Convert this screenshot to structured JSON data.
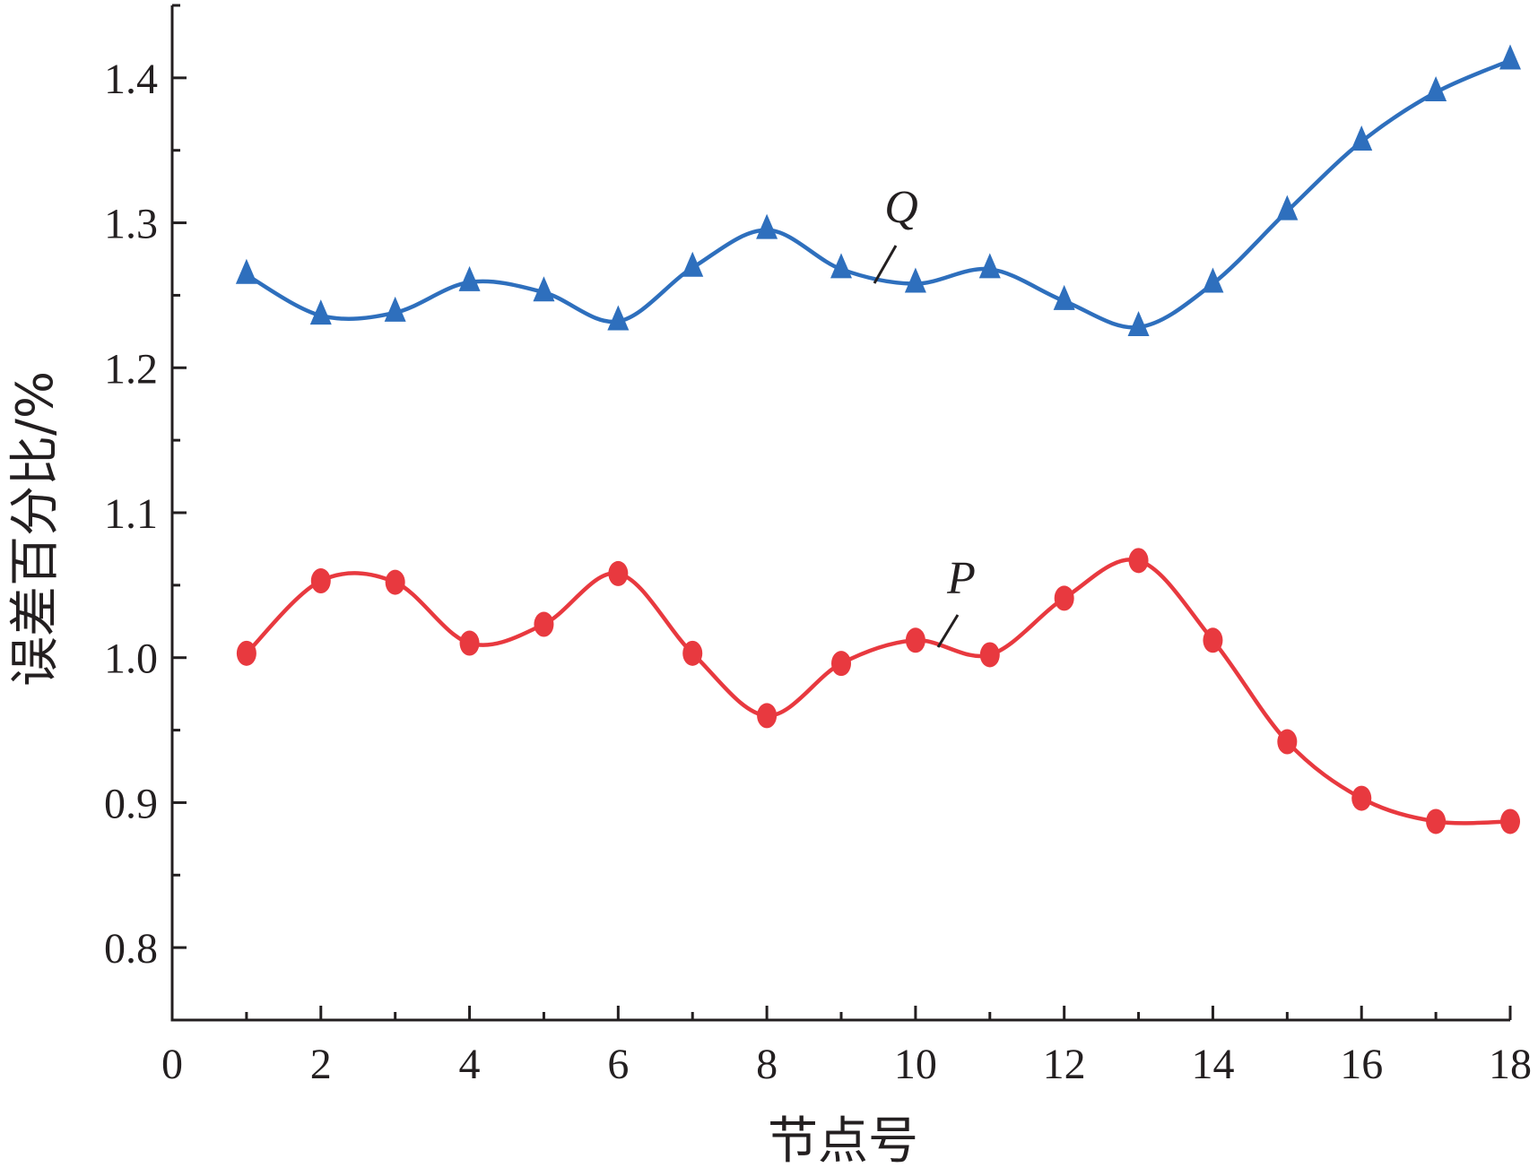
{
  "chart_data": {
    "type": "line",
    "xlabel": "节点号",
    "ylabel": "误差百分比/%",
    "xlim": [
      0,
      18
    ],
    "ylim": [
      0.75,
      1.45
    ],
    "x_ticks": [
      "0",
      "2",
      "4",
      "6",
      "8",
      "10",
      "12",
      "14",
      "16",
      "18"
    ],
    "y_ticks": [
      "0.8",
      "0.9",
      "1.0",
      "1.1",
      "1.2",
      "1.3",
      "1.4"
    ],
    "x": [
      1,
      2,
      3,
      4,
      5,
      6,
      7,
      8,
      9,
      10,
      11,
      12,
      13,
      14,
      15,
      16,
      17,
      18
    ],
    "series": [
      {
        "name": "Q",
        "marker": "triangle",
        "color": "#2e6fbd",
        "values": [
          1.264,
          1.236,
          1.238,
          1.259,
          1.252,
          1.232,
          1.269,
          1.295,
          1.268,
          1.258,
          1.268,
          1.246,
          1.228,
          1.258,
          1.308,
          1.356,
          1.39,
          1.412
        ]
      },
      {
        "name": "P",
        "marker": "circle",
        "color": "#e8393f",
        "values": [
          1.003,
          1.053,
          1.052,
          1.01,
          1.023,
          1.058,
          1.003,
          0.96,
          0.996,
          1.012,
          1.002,
          1.041,
          1.067,
          1.012,
          0.942,
          0.903,
          0.887,
          0.887
        ]
      }
    ],
    "grid": false,
    "legend": "none"
  }
}
